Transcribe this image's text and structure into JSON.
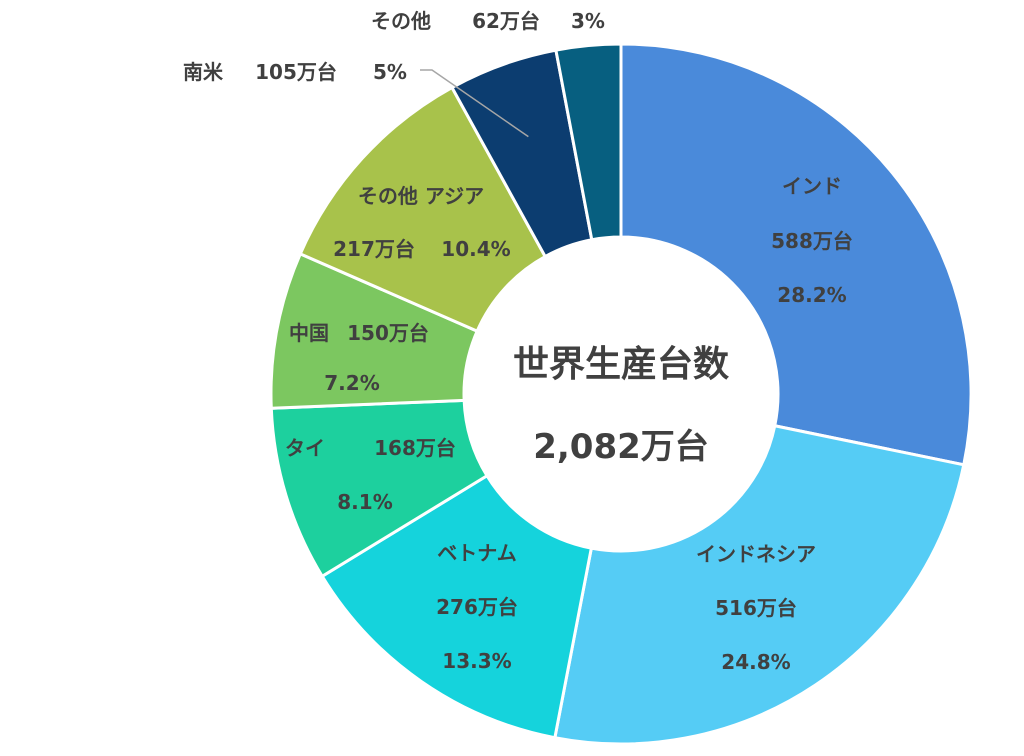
{
  "chart_data": {
    "type": "pie",
    "style": "donut",
    "center_title": "世界生産台数",
    "center_total": "2,082万台",
    "unit": "万台",
    "slices": [
      {
        "name": "インド",
        "value": 588,
        "percent": 28.2,
        "value_label": "588万台",
        "percent_label": "28.2%",
        "color": "#4A8ADA"
      },
      {
        "name": "インドネシア",
        "value": 516,
        "percent": 24.8,
        "value_label": "516万台",
        "percent_label": "24.8%",
        "color": "#55CCF5"
      },
      {
        "name": "ベトナム",
        "value": 276,
        "percent": 13.3,
        "value_label": "276万台",
        "percent_label": "13.3%",
        "color": "#15D3DC"
      },
      {
        "name": "タイ",
        "value": 168,
        "percent": 8.1,
        "value_label": "168万台",
        "percent_label": "8.1%",
        "color": "#1DD09E"
      },
      {
        "name": "中国",
        "value": 150,
        "percent": 7.2,
        "value_label": "150万台",
        "percent_label": "7.2%",
        "color": "#7CC760"
      },
      {
        "name": "その他 アジア",
        "value": 217,
        "percent": 10.4,
        "value_label": "217万台",
        "percent_label": "10.4%",
        "color": "#A8C24B"
      },
      {
        "name": "南米",
        "value": 105,
        "percent": 5,
        "value_label": "105万台",
        "percent_label": "5%",
        "color": "#0C3D70"
      },
      {
        "name": "その他",
        "value": 62,
        "percent": 3,
        "value_label": "62万台",
        "percent_label": "3%",
        "color": "#075F80"
      }
    ]
  }
}
